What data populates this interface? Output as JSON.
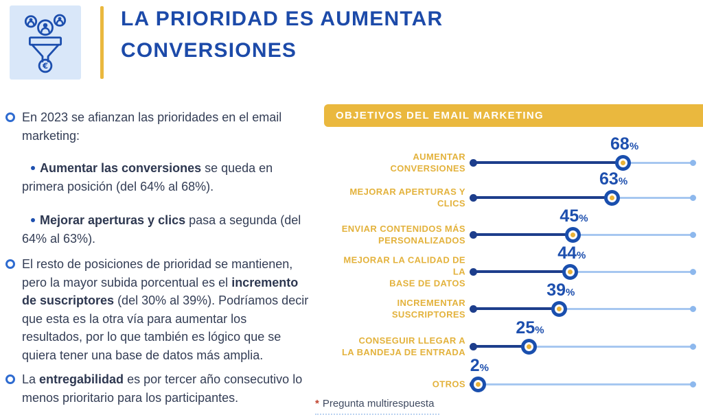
{
  "header": {
    "title_line1": "LA PRIORIDAD ES AUMENTAR",
    "title_line2": "CONVERSIONES",
    "icon": "funnel-users-euro-icon"
  },
  "left_column": {
    "bullets": [
      {
        "type": "main",
        "pre": "En 2023 se afianzan las prioridades en el email marketing:",
        "bold": "",
        "post": ""
      },
      {
        "type": "sub",
        "pre": "",
        "bold": "Aumentar las conversiones",
        "post": " se queda en primera posición (del 64% al 68%)."
      },
      {
        "type": "sub",
        "pre": "",
        "bold": "Mejorar aperturas y clics",
        "post": " pasa a segunda (del 64% al 63%)."
      },
      {
        "type": "main",
        "pre": "El resto de posiciones de prioridad se mantienen, pero la mayor subida porcentual es el ",
        "bold": "incremento de suscriptores",
        "post": " (del 30% al 39%). Podríamos decir que esta es la otra vía para aumentar los resultados, por lo que también es lógico que se quiera tener una base de datos más amplia."
      },
      {
        "type": "main",
        "pre": "La ",
        "bold": "entregabilidad",
        "post": " es por tercer año consecutivo lo menos prioritario para los participantes."
      }
    ]
  },
  "chart": {
    "header": "OBJETIVOS DEL EMAIL MARKETING",
    "footnote_star": "*",
    "footnote": "Pregunta multirespuesta"
  },
  "chart_data": {
    "type": "bar",
    "style": "lollipop",
    "orientation": "horizontal",
    "title": "OBJETIVOS DEL EMAIL MARKETING",
    "unit": "%",
    "xlim": [
      0,
      100
    ],
    "categories": [
      "AUMENTAR CONVERSIONES",
      "MEJORAR APERTURAS Y CLICS",
      "ENVIAR CONTENIDOS MÁS PERSONALIZADOS",
      "MEJORAR LA CALIDAD DE LA BASE DE DATOS",
      "INCREMENTAR SUSCRIPTORES",
      "CONSEGUIR LLEGAR A LA BANDEJA DE ENTRADA",
      "OTROS"
    ],
    "category_lines": [
      [
        "AUMENTAR",
        "CONVERSIONES"
      ],
      [
        "MEJORAR APERTURAS Y",
        "CLICS"
      ],
      [
        "ENVIAR CONTENIDOS MÁS",
        "PERSONALIZADOS"
      ],
      [
        "MEJORAR LA CALIDAD DE LA",
        "BASE DE DATOS"
      ],
      [
        "INCREMENTAR",
        "SUSCRIPTORES"
      ],
      [
        "CONSEGUIR LLEGAR A",
        "LA BANDEJA DE ENTRADA"
      ],
      [
        "OTROS"
      ]
    ],
    "values": [
      68,
      63,
      45,
      44,
      39,
      25,
      2
    ]
  },
  "colors": {
    "title_blue": "#1c4aa9",
    "value_blue": "#1d4fae",
    "track_navy": "#1d3e8c",
    "dot_ring_blue": "#1a4fae",
    "track_light_blue": "#a6c7f0",
    "end_dot_blue": "#8db8ed",
    "accent_yellow": "#EAB83E",
    "label_yellow": "#E3B23C",
    "dot_center_yellow": "#EAB238",
    "icon_bg_blue": "#d9e7f9",
    "body_text": "#333d55",
    "footnote_red": "#c0442f"
  }
}
